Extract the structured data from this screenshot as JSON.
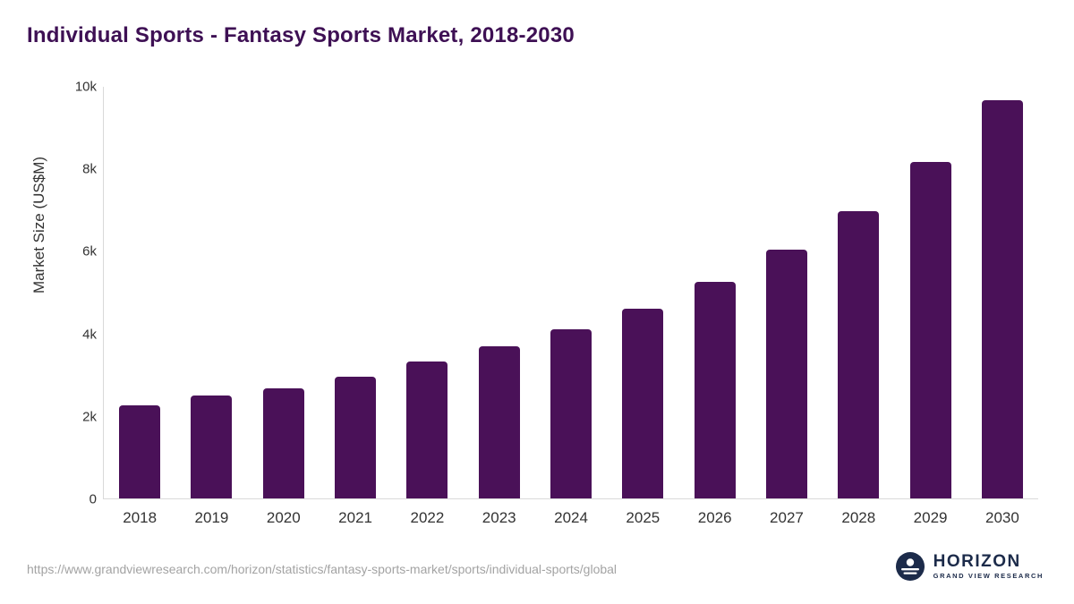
{
  "header": {
    "title": "Individual Sports - Fantasy Sports Market, 2018-2030"
  },
  "chart_data": {
    "type": "bar",
    "title": "Individual Sports - Fantasy Sports Market, 2018-2030",
    "xlabel": "",
    "ylabel": "Market Size (US$M)",
    "ylim": [
      0,
      10000
    ],
    "grid": false,
    "bar_color": "#4a1158",
    "categories": [
      "2018",
      "2019",
      "2020",
      "2021",
      "2022",
      "2023",
      "2024",
      "2025",
      "2026",
      "2027",
      "2028",
      "2029",
      "2030"
    ],
    "values": [
      2250,
      2500,
      2660,
      2950,
      3330,
      3680,
      4100,
      4610,
      5260,
      6030,
      6960,
      8160,
      9650
    ],
    "y_ticks": [
      {
        "value": 0,
        "label": "0"
      },
      {
        "value": 2000,
        "label": "2k"
      },
      {
        "value": 4000,
        "label": "4k"
      },
      {
        "value": 6000,
        "label": "6k"
      },
      {
        "value": 8000,
        "label": "8k"
      },
      {
        "value": 10000,
        "label": "10k"
      }
    ]
  },
  "footer": {
    "source_url": "https://www.grandviewresearch.com/horizon/statistics/fantasy-sports-market/sports/individual-sports/global",
    "logo_name": "HORIZON",
    "logo_subtitle": "GRAND VIEW RESEARCH",
    "logo_color": "#1c2b4a"
  }
}
